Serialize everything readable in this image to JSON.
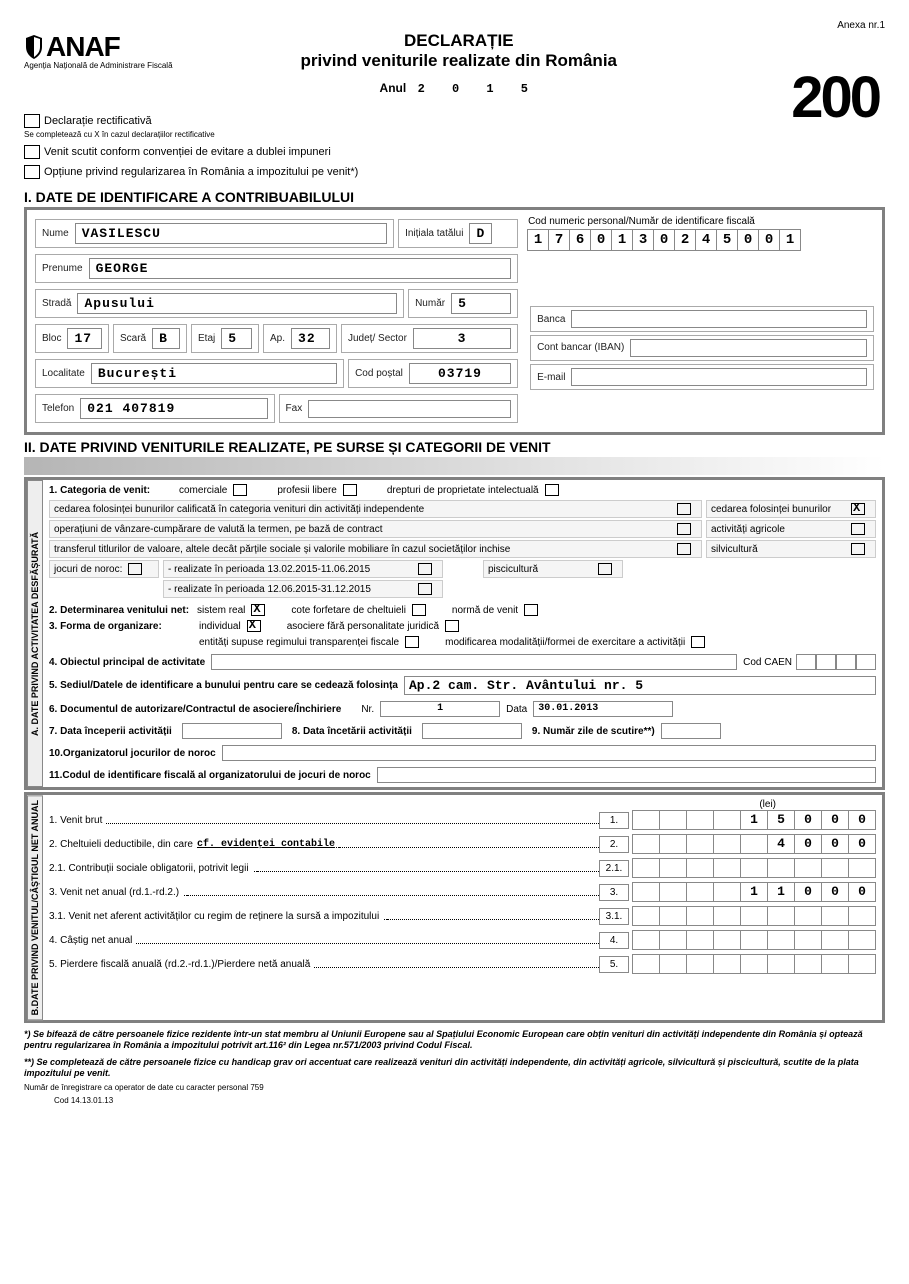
{
  "anexa": "Anexa nr.1",
  "logo_text": "ANAF",
  "logo_subtitle": "Agenția Națională de Administrare Fiscală",
  "title_line1": "DECLARAȚIE",
  "title_line2": "privind veniturile realizate din România",
  "year_label": "Anul",
  "year": "2 0 1 5",
  "form_number": "200",
  "chk_rectificativa_label": "Declarație rectificativă",
  "rectificativa_note": "Se completează cu X în cazul declarațiilor rectificative",
  "chk_venit_scutit_label": "Venit scutit conform convenției de evitare a dublei impuneri",
  "chk_optiune_label": "Opțiune privind regularizarea în România a impozitului pe venit*)",
  "section1_title": "I. DATE DE IDENTIFICARE A CONTRIBUABILULUI",
  "labels": {
    "nume": "Nume",
    "initiala": "Inițiala tatălui",
    "prenume": "Prenume",
    "strada": "Stradă",
    "numar": "Număr",
    "bloc": "Bloc",
    "scara": "Scară",
    "etaj": "Etaj",
    "ap": "Ap.",
    "judet": "Județ/ Sector",
    "localitate": "Localitate",
    "cod_postal": "Cod poștal",
    "telefon": "Telefon",
    "fax": "Fax",
    "cnp_label": "Cod numeric personal/Număr de identificare fiscală",
    "banca": "Banca",
    "iban": "Cont bancar (IBAN)",
    "email": "E-mail"
  },
  "id": {
    "nume": "VASILESCU",
    "initiala": "D",
    "prenume": "GEORGE",
    "strada": "Apusului",
    "numar": "5",
    "bloc": "17",
    "scara": "B",
    "etaj": "5",
    "ap": "32",
    "judet": "3",
    "localitate": "București",
    "cod_postal": "03719",
    "telefon": "021 407819",
    "fax": "",
    "cnp": [
      "1",
      "7",
      "6",
      "0",
      "1",
      "3",
      "0",
      "2",
      "4",
      "5",
      "0",
      "0",
      "1"
    ],
    "banca": "",
    "iban": "",
    "email": ""
  },
  "section2_title": "II. DATE PRIVIND VENITURILE REALIZATE, PE SURSE ȘI CATEGORII DE VENIT",
  "sideA": "A. DATE PRIVIND ACTIVITATEA DESFĂȘURATĂ",
  "sideB": "B.DATE PRIVIND VENITUL/CÂȘTIGUL NET ANUAL",
  "cat": {
    "heading": "1. Categoria de venit:",
    "comerciale": "comerciale",
    "profesii": "profesii libere",
    "drepturi": "drepturi de proprietate intelectuală",
    "cedarea_calif": "cedarea folosinței bunurilor calificată în categoria venituri din activități independente",
    "cedarea": "cedarea folosinței bunurilor",
    "valuta": "operațiuni de vânzare-cumpărare de valută la termen, pe bază de contract",
    "agricole": "activități agricole",
    "transfer": "transferul titlurilor de valoare, altele decât părțile sociale și valorile mobiliare în cazul societăților inchise",
    "silvi": "silvicultură",
    "jocuri": "jocuri de noroc:",
    "jocuri_p1": "- realizate în perioada 13.02.2015-11.06.2015",
    "jocuri_p2": "- realizate în perioada 12.06.2015-31.12.2015",
    "pisci": "piscicultură"
  },
  "det": {
    "heading": "2. Determinarea venitului net:",
    "sistem_real": "sistem real",
    "cote": "cote forfetare de cheltuieli",
    "norma": "normă de venit"
  },
  "forma": {
    "heading": "3. Forma de organizare:",
    "individual": "individual",
    "asociere": "asociere fără personalitate juridică",
    "entitati": "entități supuse regimului transparenței fiscale",
    "modif": "modificarea modalității/formei de exercitare a activității"
  },
  "obiect_label": "4. Obiectul principal de activitate",
  "obiect": "",
  "caen_label": "Cod CAEN",
  "sediu_label": "5. Sediul/Datele de identificare a bunului pentru care se cedează folosința",
  "sediu": "Ap.2 cam. Str. Avântului nr.  5",
  "doc_label": "6. Documentul de autorizare/Contractul de asociere/Închiriere",
  "doc_nr_label": "Nr.",
  "doc_nr": "1",
  "doc_data_label": "Data",
  "doc_data": "30.01.2013",
  "data_incep_label": "7. Data începerii activității",
  "data_incep": "",
  "data_incet_label": "8. Data încetării activității",
  "data_incet": "",
  "zile_label": "9. Număr zile de scutire**)",
  "zile": "",
  "org_label": "10.Organizatorul jocurilor de noroc",
  "org": "",
  "cif_org_label": "11.Codul de identificare fiscală al organizatorului de jocuri de noroc",
  "cif_org": "",
  "lei": "(lei)",
  "rows": [
    {
      "n": "1.",
      "label": "1. Venit brut",
      "cells": [
        "",
        "",
        "",
        "",
        "1",
        "5",
        "0",
        "0",
        "0"
      ]
    },
    {
      "n": "2.",
      "label": "2. Cheltuieli deductibile, din care",
      "extra": "cf. evidenței contabile",
      "cells": [
        "",
        "",
        "",
        "",
        "",
        "4",
        "0",
        "0",
        "0"
      ]
    },
    {
      "n": "2.1.",
      "label": "2.1. Contribuții sociale obligatorii, potrivit legii",
      "cells": [
        "",
        "",
        "",
        "",
        "",
        "",
        "",
        "",
        ""
      ]
    },
    {
      "n": "3.",
      "label": "3. Venit net anual (rd.1.-rd.2.)",
      "cells": [
        "",
        "",
        "",
        "",
        "1",
        "1",
        "0",
        "0",
        "0"
      ]
    },
    {
      "n": "3.1.",
      "label": "3.1. Venit net aferent activităților cu regim de reținere la sursă a impozitului",
      "cells": [
        "",
        "",
        "",
        "",
        "",
        "",
        "",
        "",
        ""
      ]
    },
    {
      "n": "4.",
      "label": "4. Câștig net anual",
      "cells": [
        "",
        "",
        "",
        "",
        "",
        "",
        "",
        "",
        ""
      ]
    },
    {
      "n": "5.",
      "label": "5. Pierdere fiscală anuală (rd.2.-rd.1.)/Pierdere netă anuală",
      "cells": [
        "",
        "",
        "",
        "",
        "",
        "",
        "",
        "",
        ""
      ]
    }
  ],
  "foot1": "*) Se bifează de către persoanele fizice rezidente într-un stat membru al Uniunii Europene sau al Spațiului Economic European care obțin venituri din activități independente din România și optează pentru regularizarea în România a impozitului potrivit  art.116² din Legea nr.571/2003 privind Codul Fiscal.",
  "foot2": "**) Se completează de către persoanele fizice cu handicap grav ori accentuat care realizează venituri din activități independente, din activități agricole, silvicultură și piscicultură, scutite de la plata impozitului pe venit.",
  "foot3": "Număr de înregistrare ca operator de date cu caracter personal 759",
  "foot4": "Cod 14.13.01.13"
}
